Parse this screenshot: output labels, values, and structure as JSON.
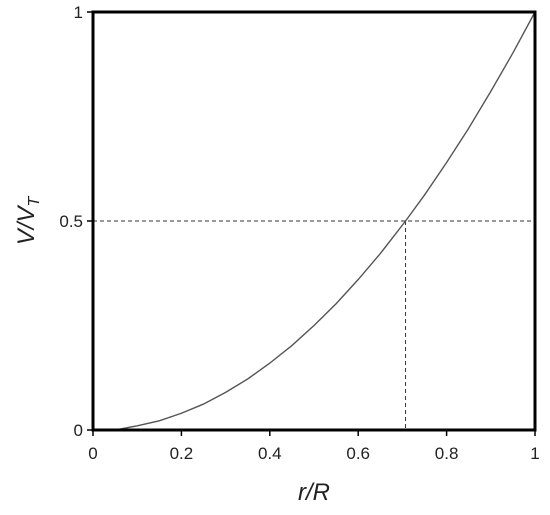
{
  "chart_data": {
    "type": "line",
    "title": "",
    "xlabel": "r/R",
    "ylabel_main": "V/V",
    "ylabel_sub": "T",
    "xlim": [
      0,
      1
    ],
    "ylim": [
      0,
      1
    ],
    "x_ticks": [
      "0",
      "0.2",
      "0.4",
      "0.6",
      "0.8",
      "1"
    ],
    "y_ticks": [
      "0",
      "0.5",
      "1"
    ],
    "grid": false,
    "legend": "none",
    "colors": {
      "curve": "#555555",
      "frame": "#000000",
      "reference": "#333333"
    },
    "series": [
      {
        "x": [
          0.05,
          0.1,
          0.15,
          0.2,
          0.25,
          0.3,
          0.35,
          0.4,
          0.45,
          0.5,
          0.55,
          0.6,
          0.65,
          0.7071,
          0.75,
          0.8,
          0.85,
          0.9,
          0.95,
          1.0
        ],
        "y": [
          0.0,
          0.01,
          0.022,
          0.04,
          0.062,
          0.09,
          0.122,
          0.16,
          0.202,
          0.25,
          0.302,
          0.36,
          0.422,
          0.5,
          0.562,
          0.64,
          0.722,
          0.81,
          0.902,
          1.0
        ]
      }
    ],
    "reference_lines": {
      "y": 0.5,
      "x": 0.7071
    }
  }
}
